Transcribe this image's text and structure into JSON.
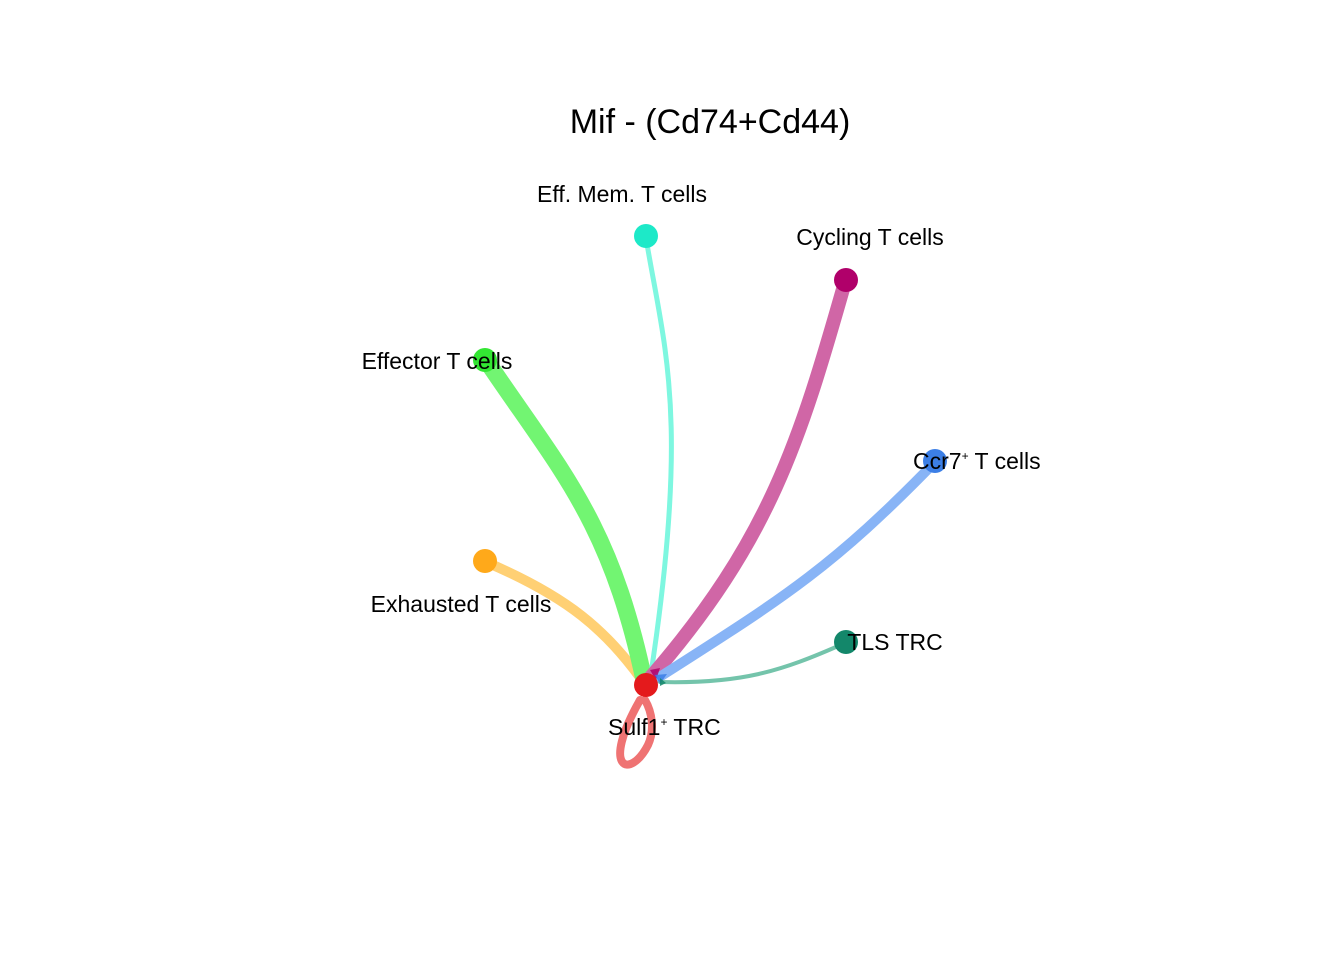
{
  "title": "Mif  - (Cd74+Cd44)",
  "target": {
    "name": "Sulf1",
    "sup": "+",
    "suffix": " TRC",
    "color": "#e41a1c"
  },
  "nodes": [
    {
      "id": "effmem",
      "label": "Eff. Mem. T cells",
      "color": "#1de9c8",
      "edge_color": "#7ef7e0"
    },
    {
      "id": "cycling",
      "label": "Cycling T cells",
      "color": "#b0006a",
      "edge_color": "#d066a6"
    },
    {
      "id": "effector",
      "label": "Effector T cells",
      "color": "#33e633",
      "edge_color": "#72f572"
    },
    {
      "id": "ccr7",
      "label_main": "Ccr7",
      "label_sup": "+",
      "label_rest": " T cells",
      "color": "#3c7fe6",
      "edge_color": "#88b4f6"
    },
    {
      "id": "exhausted",
      "label": "Exhausted T cells",
      "color": "#ffa91a",
      "edge_color": "#ffd074"
    },
    {
      "id": "tls",
      "label": "TLS TRC",
      "color": "#13876a",
      "edge_color": "#74c4ab"
    }
  ],
  "edges": [
    {
      "from": "effector",
      "to": "sulf1",
      "weight": "strong"
    },
    {
      "from": "cycling",
      "to": "sulf1",
      "weight": "strong"
    },
    {
      "from": "ccr7",
      "to": "sulf1",
      "weight": "medium"
    },
    {
      "from": "exhausted",
      "to": "sulf1",
      "weight": "medium"
    },
    {
      "from": "effmem",
      "to": "sulf1",
      "weight": "weak"
    },
    {
      "from": "tls",
      "to": "sulf1",
      "weight": "weak"
    },
    {
      "from": "sulf1",
      "to": "sulf1",
      "weight": "medium",
      "color": "#ef7373"
    }
  ]
}
